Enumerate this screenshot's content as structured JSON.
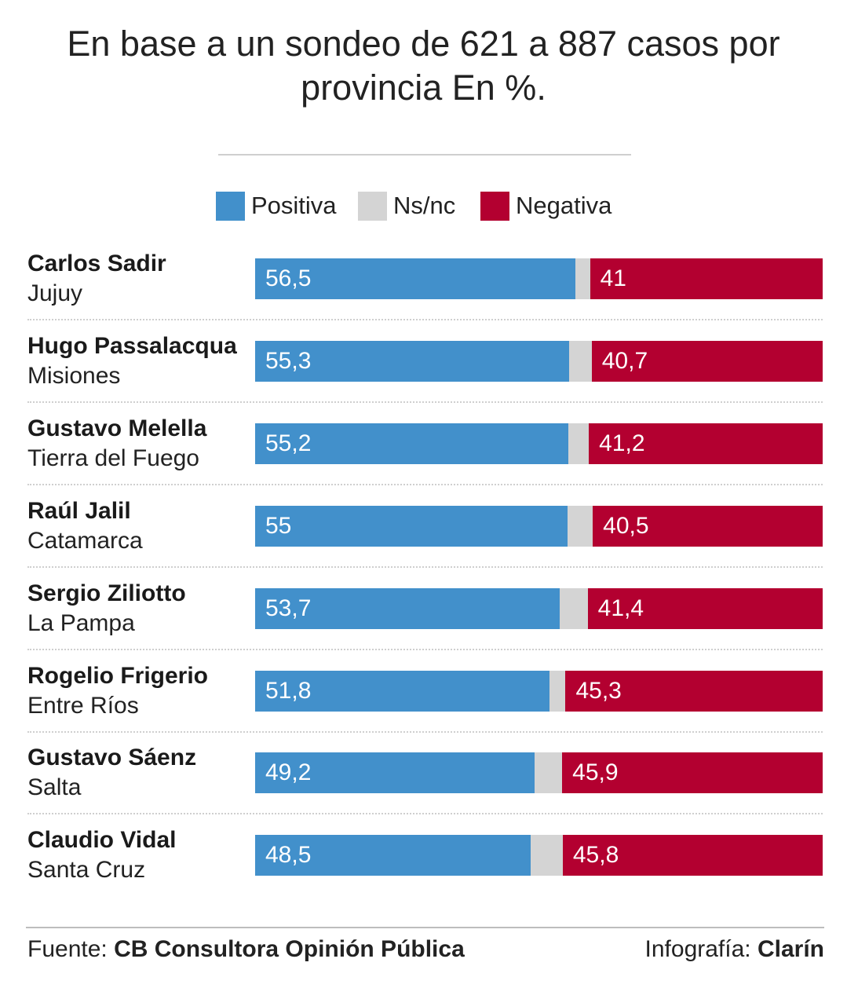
{
  "title": "En base a un sondeo de 621 a 887 casos por provincia En %.",
  "colors": {
    "positive": "#4290cb",
    "nsnc": "#d4d4d4",
    "negative": "#b30030"
  },
  "legend": [
    {
      "key": "positive",
      "label": "Positiva"
    },
    {
      "key": "nsnc",
      "label": "Ns/nc"
    },
    {
      "key": "negative",
      "label": "Negativa"
    }
  ],
  "footer": {
    "source_prefix": "Fuente: ",
    "source_name": "CB Consultora Opinión Pública",
    "credit_prefix": "Infografía: ",
    "credit_name": "Clarín"
  },
  "chart_data": {
    "type": "bar",
    "orientation": "horizontal",
    "stacked": true,
    "xlim": [
      0,
      100
    ],
    "categories": [
      {
        "name": "Carlos Sadir",
        "province": "Jujuy"
      },
      {
        "name": "Hugo Passalacqua",
        "province": "Misiones"
      },
      {
        "name": "Gustavo Melella",
        "province": "Tierra del Fuego"
      },
      {
        "name": "Raúl Jalil",
        "province": "Catamarca"
      },
      {
        "name": "Sergio Ziliotto",
        "province": "La Pampa"
      },
      {
        "name": "Rogelio Frigerio",
        "province": "Entre Ríos"
      },
      {
        "name": "Gustavo Sáenz",
        "province": "Salta"
      },
      {
        "name": "Claudio Vidal",
        "province": "Santa Cruz"
      }
    ],
    "series": [
      {
        "name": "Positiva",
        "color": "#4290cb",
        "values": [
          56.5,
          55.3,
          55.2,
          55,
          53.7,
          51.8,
          49.2,
          48.5
        ],
        "labels": [
          "56,5",
          "55,3",
          "55,2",
          "55",
          "53,7",
          "51,8",
          "49,2",
          "48,5"
        ]
      },
      {
        "name": "Ns/nc",
        "color": "#d4d4d4",
        "values": [
          2.5,
          4,
          3.6,
          4.5,
          4.9,
          2.9,
          4.9,
          5.7
        ]
      },
      {
        "name": "Negativa",
        "color": "#b30030",
        "values": [
          41,
          40.7,
          41.2,
          40.5,
          41.4,
          45.3,
          45.9,
          45.8
        ],
        "labels": [
          "41",
          "40,7",
          "41,2",
          "40,5",
          "41,4",
          "45,3",
          "45,9",
          "45,8"
        ]
      }
    ]
  }
}
